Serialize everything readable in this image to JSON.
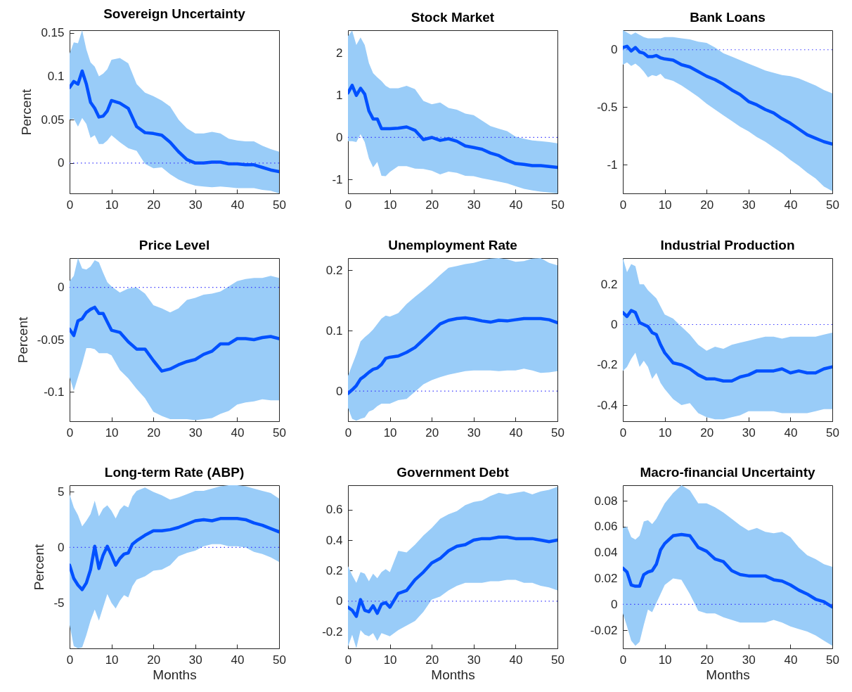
{
  "chart_data": [
    {
      "type": "line",
      "title": "Sovereign Uncertainty",
      "ylabel": "Percent",
      "x": [
        0,
        1,
        2,
        3,
        4,
        5,
        6,
        7,
        8,
        9,
        10,
        12,
        14,
        16,
        18,
        20,
        22,
        24,
        26,
        28,
        30,
        32,
        34,
        36,
        38,
        40,
        42,
        44,
        46,
        48,
        50
      ],
      "xlim": [
        0,
        50
      ],
      "xticks": [
        0,
        10,
        20,
        30,
        40,
        50
      ],
      "ylim": [
        -0.035,
        0.153
      ],
      "yticks": [
        0,
        0.05,
        0.1,
        0.15
      ],
      "series": [
        {
          "color": "#0050ff",
          "values": [
            0.087,
            0.094,
            0.091,
            0.106,
            0.091,
            0.07,
            0.063,
            0.053,
            0.054,
            0.06,
            0.072,
            0.069,
            0.063,
            0.042,
            0.035,
            0.034,
            0.032,
            0.024,
            0.013,
            0.004,
            0.0,
            0.0,
            0.001,
            0.001,
            -0.001,
            -0.001,
            -0.002,
            -0.002,
            -0.005,
            -0.008,
            -0.01
          ],
          "upper": [
            0.126,
            0.139,
            0.138,
            0.153,
            0.131,
            0.116,
            0.111,
            0.1,
            0.103,
            0.108,
            0.119,
            0.121,
            0.115,
            0.091,
            0.081,
            0.077,
            0.072,
            0.065,
            0.05,
            0.04,
            0.034,
            0.034,
            0.036,
            0.034,
            0.028,
            0.026,
            0.025,
            0.025,
            0.02,
            0.016,
            0.013
          ],
          "lower": [
            0.05,
            0.051,
            0.042,
            0.052,
            0.045,
            0.029,
            0.032,
            0.022,
            0.022,
            0.026,
            0.032,
            0.024,
            0.017,
            0.014,
            -0.001,
            -0.006,
            -0.005,
            -0.013,
            -0.019,
            -0.023,
            -0.026,
            -0.027,
            -0.028,
            -0.027,
            -0.028,
            -0.029,
            -0.029,
            -0.029,
            -0.031,
            -0.032,
            -0.035
          ]
        }
      ],
      "ref_lines": [
        {
          "axis": "y",
          "value": 0,
          "color": "#3a3aff",
          "line_style": "dotted"
        }
      ]
    },
    {
      "type": "line",
      "title": "Stock Market",
      "x": [
        0,
        1,
        2,
        3,
        4,
        5,
        6,
        7,
        8,
        9,
        10,
        12,
        14,
        16,
        18,
        20,
        22,
        24,
        26,
        28,
        30,
        32,
        34,
        36,
        38,
        40,
        42,
        44,
        46,
        48,
        50
      ],
      "xlim": [
        0,
        50
      ],
      "xticks": [
        0,
        10,
        20,
        30,
        40,
        50
      ],
      "ylim": [
        -1.33,
        2.55
      ],
      "yticks": [
        -1,
        0,
        1,
        2
      ],
      "series": [
        {
          "color": "#0050ff",
          "values": [
            1.06,
            1.24,
            1.0,
            1.17,
            1.03,
            0.63,
            0.44,
            0.44,
            0.21,
            0.21,
            0.21,
            0.22,
            0.25,
            0.17,
            -0.05,
            0.0,
            -0.07,
            -0.03,
            -0.09,
            -0.2,
            -0.24,
            -0.28,
            -0.37,
            -0.43,
            -0.54,
            -0.62,
            -0.64,
            -0.67,
            -0.67,
            -0.69,
            -0.71
          ],
          "upper": [
            2.41,
            2.54,
            2.2,
            2.38,
            2.2,
            1.77,
            1.53,
            1.43,
            1.34,
            1.23,
            1.17,
            1.17,
            1.23,
            1.15,
            0.87,
            0.79,
            0.83,
            0.7,
            0.66,
            0.57,
            0.53,
            0.4,
            0.27,
            0.21,
            0.15,
            0.02,
            -0.03,
            -0.07,
            -0.09,
            -0.11,
            -0.14
          ],
          "lower": [
            -0.09,
            -0.09,
            -0.11,
            0.08,
            -0.11,
            -0.5,
            -0.71,
            -0.58,
            -0.91,
            -0.92,
            -0.82,
            -0.68,
            -0.68,
            -0.74,
            -0.75,
            -0.79,
            -0.88,
            -0.81,
            -0.84,
            -0.91,
            -0.92,
            -0.97,
            -1.01,
            -1.05,
            -1.09,
            -1.16,
            -1.22,
            -1.26,
            -1.29,
            -1.31,
            -1.33
          ]
        }
      ],
      "ref_lines": [
        {
          "axis": "y",
          "value": 0,
          "color": "#3a3aff",
          "line_style": "dotted"
        }
      ]
    },
    {
      "type": "line",
      "title": "Bank Loans",
      "x": [
        0,
        1,
        2,
        3,
        4,
        5,
        6,
        7,
        8,
        9,
        10,
        12,
        14,
        16,
        18,
        20,
        22,
        24,
        26,
        28,
        30,
        32,
        34,
        36,
        38,
        40,
        42,
        44,
        46,
        48,
        50
      ],
      "xlim": [
        0,
        50
      ],
      "xticks": [
        0,
        10,
        20,
        30,
        40,
        50
      ],
      "ylim": [
        -1.25,
        0.17
      ],
      "yticks": [
        -1,
        -0.5,
        0
      ],
      "series": [
        {
          "color": "#0050ff",
          "values": [
            0.02,
            0.03,
            -0.01,
            0.02,
            -0.02,
            -0.03,
            -0.06,
            -0.06,
            -0.05,
            -0.07,
            -0.08,
            -0.09,
            -0.13,
            -0.15,
            -0.19,
            -0.23,
            -0.26,
            -0.3,
            -0.35,
            -0.39,
            -0.45,
            -0.48,
            -0.52,
            -0.55,
            -0.6,
            -0.64,
            -0.69,
            -0.74,
            -0.77,
            -0.8,
            -0.82
          ],
          "upper": [
            0.17,
            0.15,
            0.13,
            0.15,
            0.13,
            0.11,
            0.1,
            0.1,
            0.1,
            0.1,
            0.11,
            0.11,
            0.1,
            0.09,
            0.07,
            0.06,
            0.02,
            -0.03,
            -0.06,
            -0.09,
            -0.12,
            -0.15,
            -0.18,
            -0.2,
            -0.22,
            -0.23,
            -0.25,
            -0.28,
            -0.31,
            -0.35,
            -0.38
          ],
          "lower": [
            -0.13,
            -0.11,
            -0.14,
            -0.12,
            -0.15,
            -0.19,
            -0.24,
            -0.22,
            -0.23,
            -0.21,
            -0.25,
            -0.27,
            -0.31,
            -0.36,
            -0.41,
            -0.47,
            -0.52,
            -0.57,
            -0.62,
            -0.67,
            -0.71,
            -0.76,
            -0.8,
            -0.85,
            -0.9,
            -0.96,
            -1.01,
            -1.07,
            -1.12,
            -1.19,
            -1.23
          ]
        }
      ],
      "ref_lines": [
        {
          "axis": "y",
          "value": 0,
          "color": "#3a3aff",
          "line_style": "dotted"
        }
      ]
    },
    {
      "type": "line",
      "title": "Price Level",
      "ylabel": "Percent",
      "x": [
        0,
        1,
        2,
        3,
        4,
        5,
        6,
        7,
        8,
        9,
        10,
        12,
        14,
        16,
        18,
        20,
        22,
        24,
        26,
        28,
        30,
        32,
        34,
        36,
        38,
        40,
        42,
        44,
        46,
        48,
        50
      ],
      "xlim": [
        0,
        50
      ],
      "xticks": [
        0,
        10,
        20,
        30,
        40,
        50
      ],
      "ylim": [
        -0.128,
        0.028
      ],
      "yticks": [
        -0.1,
        -0.05,
        0
      ],
      "series": [
        {
          "color": "#0050ff",
          "values": [
            -0.04,
            -0.046,
            -0.032,
            -0.03,
            -0.024,
            -0.021,
            -0.019,
            -0.025,
            -0.025,
            -0.033,
            -0.041,
            -0.043,
            -0.052,
            -0.059,
            -0.059,
            -0.07,
            -0.08,
            -0.078,
            -0.074,
            -0.071,
            -0.069,
            -0.064,
            -0.061,
            -0.054,
            -0.054,
            -0.049,
            -0.049,
            -0.05,
            -0.048,
            -0.047,
            -0.049
          ],
          "upper": [
            0.006,
            0.011,
            0.028,
            0.018,
            0.017,
            0.02,
            0.026,
            0.024,
            0.014,
            0.005,
            0.001,
            -0.005,
            -0.001,
            0.0,
            -0.006,
            -0.017,
            -0.02,
            -0.024,
            -0.02,
            -0.012,
            -0.01,
            -0.007,
            -0.006,
            -0.004,
            0.001,
            0.006,
            0.008,
            0.009,
            0.009,
            0.011,
            0.009
          ],
          "lower": [
            -0.086,
            -0.099,
            -0.086,
            -0.073,
            -0.058,
            -0.058,
            -0.059,
            -0.063,
            -0.063,
            -0.063,
            -0.065,
            -0.079,
            -0.087,
            -0.097,
            -0.106,
            -0.119,
            -0.123,
            -0.126,
            -0.126,
            -0.126,
            -0.127,
            -0.126,
            -0.125,
            -0.121,
            -0.118,
            -0.112,
            -0.11,
            -0.109,
            -0.107,
            -0.108,
            -0.108
          ]
        }
      ],
      "ref_lines": [
        {
          "axis": "y",
          "value": 0,
          "color": "#3a3aff",
          "line_style": "dotted"
        }
      ]
    },
    {
      "type": "line",
      "title": "Unemployment Rate",
      "x": [
        0,
        1,
        2,
        3,
        4,
        5,
        6,
        7,
        8,
        9,
        10,
        12,
        14,
        16,
        18,
        20,
        22,
        24,
        26,
        28,
        30,
        32,
        34,
        36,
        38,
        40,
        42,
        44,
        46,
        48,
        50
      ],
      "xlim": [
        0,
        50
      ],
      "xticks": [
        0,
        10,
        20,
        30,
        40,
        50
      ],
      "ylim": [
        -0.05,
        0.22
      ],
      "yticks": [
        0,
        0.1,
        0.2
      ],
      "series": [
        {
          "color": "#0050ff",
          "values": [
            -0.004,
            0.002,
            0.009,
            0.02,
            0.025,
            0.031,
            0.036,
            0.038,
            0.044,
            0.054,
            0.056,
            0.058,
            0.064,
            0.072,
            0.085,
            0.098,
            0.111,
            0.117,
            0.12,
            0.121,
            0.119,
            0.116,
            0.114,
            0.117,
            0.116,
            0.118,
            0.12,
            0.12,
            0.12,
            0.118,
            0.113
          ],
          "upper": [
            0.025,
            0.043,
            0.061,
            0.082,
            0.089,
            0.095,
            0.102,
            0.111,
            0.12,
            0.125,
            0.123,
            0.129,
            0.144,
            0.156,
            0.167,
            0.179,
            0.192,
            0.204,
            0.207,
            0.21,
            0.212,
            0.216,
            0.219,
            0.22,
            0.218,
            0.214,
            0.215,
            0.219,
            0.22,
            0.212,
            0.208
          ],
          "lower": [
            -0.028,
            -0.046,
            -0.049,
            -0.046,
            -0.044,
            -0.034,
            -0.031,
            -0.025,
            -0.021,
            -0.021,
            -0.021,
            -0.015,
            -0.013,
            -0.001,
            0.011,
            0.018,
            0.023,
            0.027,
            0.03,
            0.033,
            0.034,
            0.034,
            0.034,
            0.033,
            0.034,
            0.034,
            0.037,
            0.034,
            0.03,
            0.031,
            0.033
          ]
        }
      ],
      "ref_lines": [
        {
          "axis": "y",
          "value": 0,
          "color": "#3a3aff",
          "line_style": "dotted"
        }
      ]
    },
    {
      "type": "line",
      "title": "Industrial Production",
      "x": [
        0,
        1,
        2,
        3,
        4,
        5,
        6,
        7,
        8,
        9,
        10,
        12,
        14,
        16,
        18,
        20,
        22,
        24,
        26,
        28,
        30,
        32,
        34,
        36,
        38,
        40,
        42,
        44,
        46,
        48,
        50
      ],
      "xlim": [
        0,
        50
      ],
      "xticks": [
        0,
        10,
        20,
        30,
        40,
        50
      ],
      "ylim": [
        -0.48,
        0.33
      ],
      "yticks": [
        -0.4,
        -0.2,
        0,
        0.2
      ],
      "series": [
        {
          "color": "#0050ff",
          "values": [
            0.06,
            0.04,
            0.07,
            0.06,
            0.01,
            0.0,
            -0.01,
            -0.04,
            -0.05,
            -0.1,
            -0.14,
            -0.19,
            -0.2,
            -0.22,
            -0.25,
            -0.27,
            -0.27,
            -0.28,
            -0.28,
            -0.26,
            -0.25,
            -0.23,
            -0.23,
            -0.23,
            -0.22,
            -0.24,
            -0.23,
            -0.24,
            -0.24,
            -0.22,
            -0.21
          ],
          "upper": [
            0.33,
            0.26,
            0.3,
            0.29,
            0.2,
            0.2,
            0.17,
            0.15,
            0.13,
            0.09,
            0.05,
            0.03,
            -0.01,
            -0.05,
            -0.1,
            -0.13,
            -0.11,
            -0.12,
            -0.1,
            -0.09,
            -0.08,
            -0.07,
            -0.06,
            -0.06,
            -0.07,
            -0.06,
            -0.06,
            -0.06,
            -0.06,
            -0.05,
            -0.04
          ],
          "lower": [
            -0.23,
            -0.21,
            -0.17,
            -0.14,
            -0.21,
            -0.18,
            -0.21,
            -0.27,
            -0.24,
            -0.29,
            -0.32,
            -0.37,
            -0.4,
            -0.39,
            -0.44,
            -0.46,
            -0.47,
            -0.47,
            -0.46,
            -0.45,
            -0.43,
            -0.43,
            -0.43,
            -0.43,
            -0.44,
            -0.44,
            -0.44,
            -0.44,
            -0.43,
            -0.42,
            -0.42
          ]
        }
      ],
      "ref_lines": [
        {
          "axis": "y",
          "value": 0,
          "color": "#3a3aff",
          "line_style": "dotted"
        }
      ]
    },
    {
      "type": "line",
      "title": "Long-term Rate (ABP)",
      "xlabel": "Months",
      "ylabel": "Percent",
      "x": [
        0,
        1,
        2,
        3,
        4,
        5,
        6,
        7,
        8,
        9,
        10,
        11,
        12,
        13,
        14,
        15,
        16,
        18,
        20,
        22,
        24,
        26,
        28,
        30,
        32,
        34,
        36,
        38,
        40,
        42,
        44,
        46,
        48,
        50
      ],
      "xlim": [
        0,
        50
      ],
      "xticks": [
        0,
        10,
        20,
        30,
        40,
        50
      ],
      "ylim": [
        -9.1,
        5.6
      ],
      "yticks": [
        -5,
        0,
        5
      ],
      "series": [
        {
          "color": "#0050ff",
          "values": [
            -1.6,
            -2.8,
            -3.4,
            -3.8,
            -3.2,
            -2.0,
            0.1,
            -1.9,
            -0.7,
            0.1,
            -0.7,
            -1.6,
            -1.0,
            -0.6,
            -0.5,
            0.3,
            0.6,
            1.1,
            1.5,
            1.5,
            1.6,
            1.8,
            2.1,
            2.4,
            2.5,
            2.4,
            2.6,
            2.6,
            2.6,
            2.5,
            2.2,
            2.0,
            1.7,
            1.4
          ],
          "upper": [
            4.8,
            3.6,
            2.9,
            1.9,
            2.4,
            3.0,
            4.2,
            2.8,
            3.5,
            3.8,
            3.3,
            2.6,
            3.4,
            3.8,
            3.6,
            4.6,
            5.1,
            5.4,
            5.0,
            4.7,
            4.3,
            4.5,
            4.8,
            5.1,
            5.1,
            5.3,
            5.5,
            5.6,
            5.6,
            5.5,
            5.3,
            5.1,
            4.9,
            4.4
          ],
          "lower": [
            -7.0,
            -8.9,
            -9.1,
            -9.0,
            -7.9,
            -6.6,
            -5.6,
            -6.6,
            -5.4,
            -4.2,
            -5.0,
            -5.5,
            -4.8,
            -4.3,
            -4.5,
            -3.5,
            -2.9,
            -2.6,
            -2.1,
            -2.0,
            -1.6,
            -0.8,
            -0.5,
            -0.3,
            0.1,
            0.3,
            0.3,
            0.1,
            0.1,
            0.0,
            -0.4,
            -0.6,
            -0.9,
            -1.3
          ]
        }
      ],
      "ref_lines": [
        {
          "axis": "y",
          "value": 0,
          "color": "#3a3aff",
          "line_style": "dotted"
        }
      ]
    },
    {
      "type": "line",
      "title": "Government Debt",
      "xlabel": "Months",
      "x": [
        0,
        1,
        2,
        3,
        4,
        5,
        6,
        7,
        8,
        9,
        10,
        12,
        14,
        16,
        18,
        20,
        22,
        24,
        26,
        28,
        30,
        32,
        34,
        36,
        38,
        40,
        42,
        44,
        46,
        48,
        50
      ],
      "xlim": [
        0,
        50
      ],
      "xticks": [
        0,
        10,
        20,
        30,
        40,
        50
      ],
      "ylim": [
        -0.31,
        0.76
      ],
      "yticks": [
        -0.2,
        0,
        0.2,
        0.4,
        0.6
      ],
      "series": [
        {
          "color": "#0050ff",
          "values": [
            -0.04,
            -0.06,
            -0.1,
            0.01,
            -0.06,
            -0.07,
            -0.03,
            -0.08,
            -0.02,
            -0.01,
            -0.04,
            0.05,
            0.07,
            0.14,
            0.19,
            0.25,
            0.28,
            0.33,
            0.36,
            0.37,
            0.4,
            0.41,
            0.41,
            0.42,
            0.42,
            0.41,
            0.41,
            0.41,
            0.4,
            0.39,
            0.4
          ],
          "upper": [
            0.23,
            0.17,
            0.12,
            0.19,
            0.18,
            0.13,
            0.18,
            0.15,
            0.19,
            0.21,
            0.19,
            0.33,
            0.32,
            0.37,
            0.43,
            0.48,
            0.54,
            0.57,
            0.59,
            0.63,
            0.65,
            0.66,
            0.69,
            0.71,
            0.7,
            0.71,
            0.72,
            0.7,
            0.72,
            0.73,
            0.75
          ],
          "lower": [
            -0.3,
            -0.22,
            -0.31,
            -0.19,
            -0.22,
            -0.23,
            -0.21,
            -0.26,
            -0.21,
            -0.22,
            -0.23,
            -0.19,
            -0.16,
            -0.13,
            -0.07,
            0.01,
            0.03,
            0.07,
            0.1,
            0.12,
            0.12,
            0.12,
            0.13,
            0.13,
            0.14,
            0.14,
            0.12,
            0.12,
            0.1,
            0.09,
            0.07
          ]
        }
      ],
      "ref_lines": [
        {
          "axis": "y",
          "value": 0,
          "color": "#3a3aff",
          "line_style": "dotted"
        }
      ]
    },
    {
      "type": "line",
      "title": "Macro-financial Uncertainty",
      "xlabel": "Months",
      "x": [
        0,
        1,
        2,
        3,
        4,
        5,
        6,
        7,
        8,
        9,
        10,
        12,
        14,
        16,
        18,
        20,
        22,
        24,
        26,
        28,
        30,
        32,
        34,
        36,
        38,
        40,
        42,
        44,
        46,
        48,
        50
      ],
      "xlim": [
        0,
        50
      ],
      "xticks": [
        0,
        10,
        20,
        30,
        40,
        50
      ],
      "ylim": [
        -0.034,
        0.092
      ],
      "yticks": [
        -0.02,
        0,
        0.02,
        0.04,
        0.06,
        0.08
      ],
      "series": [
        {
          "color": "#0050ff",
          "values": [
            0.028,
            0.025,
            0.015,
            0.014,
            0.014,
            0.023,
            0.025,
            0.026,
            0.031,
            0.042,
            0.047,
            0.053,
            0.054,
            0.053,
            0.044,
            0.041,
            0.035,
            0.033,
            0.026,
            0.023,
            0.022,
            0.022,
            0.022,
            0.019,
            0.018,
            0.015,
            0.011,
            0.008,
            0.004,
            0.002,
            -0.002
          ],
          "upper": [
            0.059,
            0.06,
            0.052,
            0.05,
            0.053,
            0.064,
            0.065,
            0.062,
            0.066,
            0.072,
            0.078,
            0.086,
            0.092,
            0.088,
            0.078,
            0.078,
            0.075,
            0.071,
            0.066,
            0.061,
            0.057,
            0.059,
            0.056,
            0.055,
            0.056,
            0.052,
            0.044,
            0.038,
            0.035,
            0.031,
            0.029
          ],
          "lower": [
            -0.007,
            -0.017,
            -0.028,
            -0.032,
            -0.029,
            -0.016,
            -0.004,
            -0.006,
            0.001,
            0.008,
            0.015,
            0.02,
            0.019,
            0.008,
            -0.005,
            -0.007,
            -0.007,
            -0.01,
            -0.012,
            -0.014,
            -0.014,
            -0.014,
            -0.014,
            -0.012,
            -0.014,
            -0.017,
            -0.019,
            -0.021,
            -0.024,
            -0.028,
            -0.032
          ]
        }
      ],
      "ref_lines": [
        {
          "axis": "y",
          "value": 0,
          "color": "#3a3aff",
          "line_style": "dotted"
        }
      ]
    }
  ]
}
